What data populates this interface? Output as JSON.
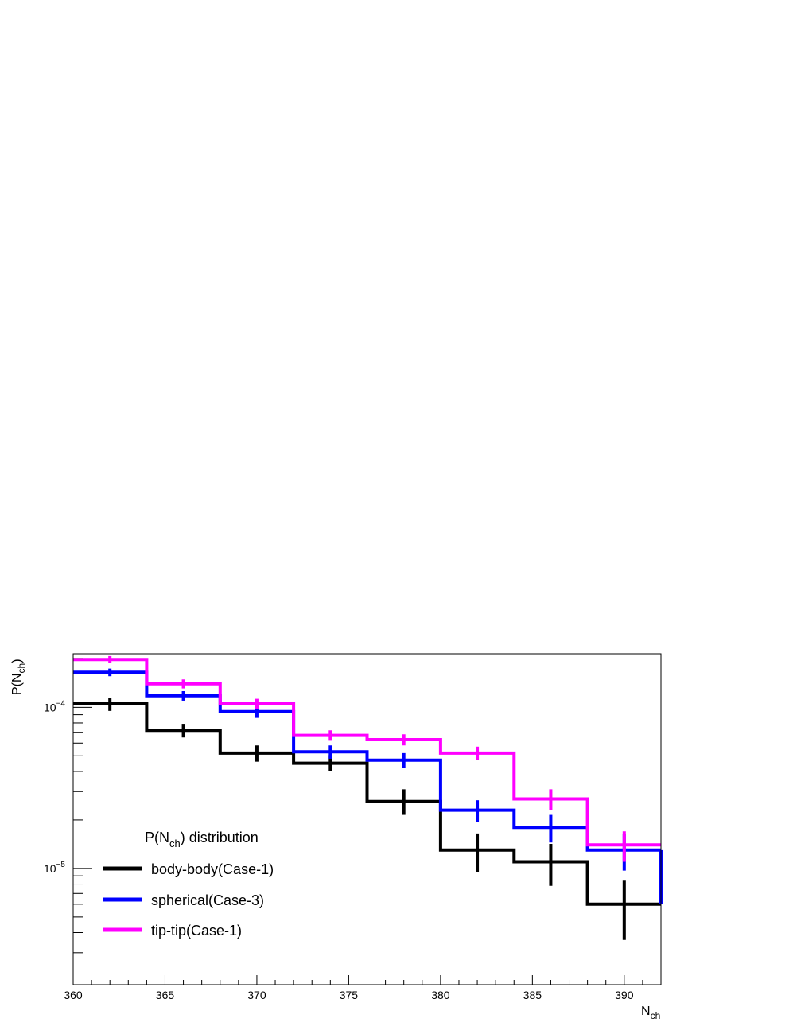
{
  "chart_data": {
    "type": "line",
    "step": true,
    "title": "",
    "xlabel": {
      "main": "N",
      "sub": "ch"
    },
    "ylabel": {
      "main": "P(N",
      "sub": "ch",
      "suffix": ")"
    },
    "xlim": [
      360,
      392
    ],
    "ylim": [
      1.9e-06,
      0.000215
    ],
    "yscale": "log",
    "grid": false,
    "bin_edges": [
      360,
      364,
      368,
      372,
      376,
      380,
      384,
      388,
      392
    ],
    "bin_centers": [
      362,
      366,
      370,
      374,
      378,
      382,
      386,
      390
    ],
    "x_ticks": [
      "360",
      "365",
      "370",
      "375",
      "380",
      "385",
      "390"
    ],
    "y_ticks": [
      {
        "base": "10",
        "exp": "−4",
        "value": 0.0001
      },
      {
        "base": "10",
        "exp": "−5",
        "value": 1e-05
      }
    ],
    "legend": {
      "title": {
        "main": "P(N",
        "sub": "ch",
        "suffix": ") distribution"
      },
      "placement": "bottom-left"
    },
    "series": [
      {
        "name": "body-body(Case-1)",
        "color": "#000000",
        "values": [
          0.000105,
          7.2e-05,
          5.2e-05,
          4.5e-05,
          2.6e-05,
          1.3e-05,
          1.1e-05,
          6e-06
        ],
        "err_low": [
          9.5e-05,
          6.5e-05,
          4.6e-05,
          4e-05,
          2.15e-05,
          9.5e-06,
          7.8e-06,
          3.6e-06
        ],
        "err_high": [
          0.000115,
          7.9e-05,
          5.8e-05,
          5.05e-05,
          3.1e-05,
          1.65e-05,
          1.42e-05,
          8.4e-06
        ]
      },
      {
        "name": "spherical(Case-3)",
        "color": "#0000ff",
        "values": [
          0.000165,
          0.000118,
          9.4e-05,
          5.3e-05,
          4.7e-05,
          2.3e-05,
          1.8e-05,
          1.3e-05
        ],
        "err_low": [
          0.000156,
          0.00011,
          8.6e-05,
          4.8e-05,
          4.2e-05,
          1.95e-05,
          1.45e-05,
          9.7e-06
        ],
        "err_high": [
          0.000174,
          0.000126,
          0.000102,
          5.8e-05,
          5.2e-05,
          2.65e-05,
          2.15e-05,
          1.63e-05
        ]
      },
      {
        "name": "tip-tip(Case-1)",
        "color": "#ff00ff",
        "values": [
          0.000198,
          0.00014,
          0.000105,
          6.7e-05,
          6.3e-05,
          5.2e-05,
          2.7e-05,
          1.4e-05
        ],
        "err_low": [
          0.000188,
          0.000131,
          9.7e-05,
          6.2e-05,
          5.8e-05,
          4.7e-05,
          2.3e-05,
          1.1e-05
        ],
        "err_high": [
          0.000208,
          0.000149,
          0.000113,
          7.2e-05,
          6.8e-05,
          5.7e-05,
          3.1e-05,
          1.7e-05
        ]
      }
    ]
  }
}
